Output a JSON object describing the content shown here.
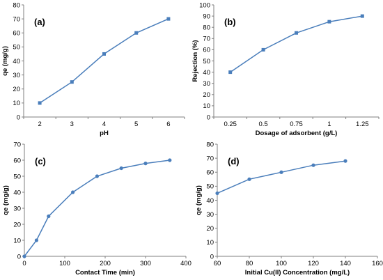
{
  "style": {
    "series_color": "#4a7ebb",
    "axis_color": "#7f7f7f"
  },
  "chart_data": [
    {
      "panel": "(a)",
      "type": "line",
      "xlabel": "pH",
      "ylabel": "qe (mg/g)",
      "x_is_category": true,
      "categories": [
        "2",
        "3",
        "4",
        "5",
        "6"
      ],
      "values": [
        10,
        25,
        45,
        60,
        70
      ],
      "ylim": [
        0,
        80
      ],
      "yticks": [
        0,
        10,
        20,
        30,
        40,
        50,
        60,
        70,
        80
      ],
      "grid": false
    },
    {
      "panel": "(b)",
      "type": "line",
      "xlabel": "Dosage of adsorbent (g/L)",
      "ylabel": "Rejection (%)",
      "x_is_category": true,
      "categories": [
        "0.25",
        "0.5",
        "0.75",
        "1",
        "1.25"
      ],
      "values": [
        40,
        60,
        75,
        85,
        90
      ],
      "ylim": [
        0,
        100
      ],
      "yticks": [
        0,
        10,
        20,
        30,
        40,
        50,
        60,
        70,
        80,
        90,
        100
      ],
      "grid": false
    },
    {
      "panel": "(c)",
      "type": "scatter",
      "xlabel": "Contact Time (min)",
      "ylabel": "qe (mg/g)",
      "x_is_category": false,
      "x": [
        0,
        30,
        60,
        120,
        180,
        240,
        300,
        360
      ],
      "y": [
        0,
        10,
        25,
        40,
        50,
        55,
        58,
        60
      ],
      "xlim": [
        0,
        400
      ],
      "xticks": [
        0,
        100,
        200,
        300,
        400
      ],
      "ylim": [
        0,
        70
      ],
      "yticks": [
        0,
        10,
        20,
        30,
        40,
        50,
        60,
        70
      ],
      "grid": false
    },
    {
      "panel": "(d)",
      "type": "scatter",
      "xlabel": "Initial Cu(II) Concentration (mg/L)",
      "ylabel": "qe (mg/g)",
      "x_is_category": false,
      "x": [
        60,
        80,
        100,
        120,
        140
      ],
      "y": [
        45,
        55,
        60,
        65,
        68
      ],
      "xlim": [
        60,
        160
      ],
      "xticks": [
        60,
        80,
        100,
        120,
        140,
        160
      ],
      "ylim": [
        0,
        80
      ],
      "yticks": [
        0,
        10,
        20,
        30,
        40,
        50,
        60,
        70,
        80
      ],
      "grid": false
    }
  ]
}
